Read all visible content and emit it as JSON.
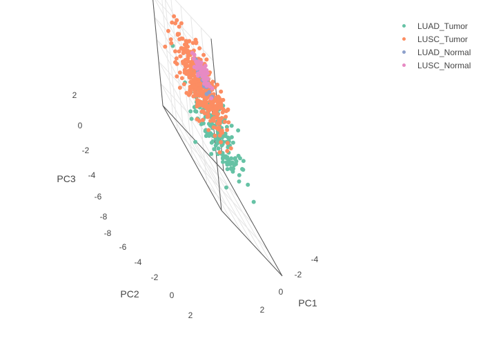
{
  "chart_data": {
    "type": "scatter3d",
    "xlabel": "PC1",
    "ylabel": "PC2",
    "zlabel": "PC3",
    "xticks": [
      "-4",
      "-2",
      "0",
      "2"
    ],
    "yticks": [
      "-8",
      "-6",
      "-4",
      "-2",
      "0",
      "2"
    ],
    "zticks": [
      "2",
      "0",
      "-2",
      "-4",
      "-6",
      "-8"
    ],
    "xlim": [
      -5,
      3
    ],
    "ylim": [
      -9,
      3
    ],
    "zlim": [
      -9,
      3
    ],
    "legend_position": "top-right",
    "series": [
      {
        "name": "LUAD_Tumor",
        "color": "#66c2a5",
        "count": 180,
        "center": [
          -1.2,
          -2.8,
          -3.8
        ],
        "spread": [
          1.3,
          1.8,
          1.3
        ]
      },
      {
        "name": "LUSC_Tumor",
        "color": "#fc8d62",
        "count": 380,
        "center": [
          -1.0,
          -5.5,
          -0.8
        ],
        "spread": [
          1.2,
          1.8,
          1.5
        ]
      },
      {
        "name": "LUAD_Normal",
        "color": "#8da0cb",
        "count": 25,
        "center": [
          -4.2,
          -0.5,
          -1.5
        ],
        "spread": [
          0.4,
          0.6,
          0.5
        ]
      },
      {
        "name": "LUSC_Normal",
        "color": "#e78ac3",
        "count": 60,
        "center": [
          -4.5,
          -0.3,
          -1.0
        ],
        "spread": [
          0.4,
          0.6,
          0.5
        ]
      }
    ]
  }
}
